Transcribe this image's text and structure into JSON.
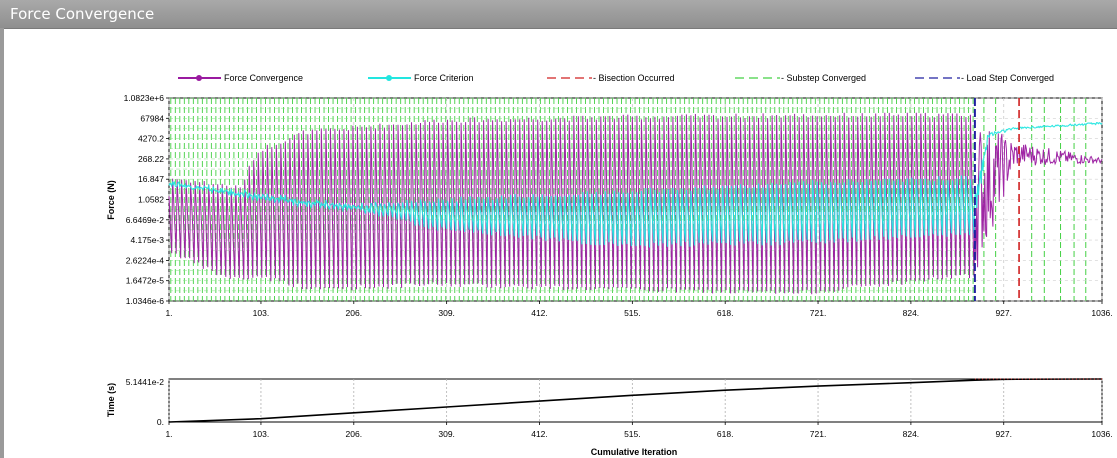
{
  "window": {
    "title": "Force Convergence"
  },
  "colors": {
    "force_convergence": "#9a1aa0",
    "force_criterion": "#22e6e0",
    "bisection": "#d02020",
    "substep": "#44d044",
    "load_step": "#2020a0",
    "time_curve": "#000000"
  },
  "chart_data": [
    {
      "type": "line",
      "ylabel": "Force (N)",
      "xlabel": "",
      "y_scale": "log",
      "ylim": [
        1.0346e-06,
        1082300.0
      ],
      "xlim": [
        1,
        1036
      ],
      "x_ticks": [
        "1.",
        "103.",
        "206.",
        "309.",
        "412.",
        "515.",
        "618.",
        "721.",
        "824.",
        "927.",
        "1036."
      ],
      "y_ticks": [
        "1.0823e+6",
        "67984",
        "4270.2",
        "268.22",
        "16.847",
        "1.0582",
        "6.6469e-2",
        "4.175e-3",
        "2.6224e-4",
        "1.6472e-5",
        "1.0346e-6"
      ],
      "legend_position": "top",
      "legend": [
        {
          "name": "Force Convergence",
          "style": "solid-marker"
        },
        {
          "name": "Force Criterion",
          "style": "solid-marker"
        },
        {
          "name": "Bisection Occurred",
          "style": "dashed"
        },
        {
          "name": "Substep Converged",
          "style": "dashed"
        },
        {
          "name": "Load Step Converged",
          "style": "dashed"
        }
      ],
      "bisection_x": [
        944
      ],
      "load_step_x": [
        895
      ],
      "substep_interval_approx": 5,
      "series": [
        {
          "name": "Force Convergence",
          "note_shape": "oscillation",
          "upper_envelope": [
            [
              1,
              20
            ],
            [
              60,
              8
            ],
            [
              80,
              5
            ],
            [
              95,
              300
            ],
            [
              103,
              1000
            ],
            [
              150,
              10000
            ],
            [
              300,
              50000
            ],
            [
              500,
              80000
            ],
            [
              700,
              100000
            ],
            [
              880,
              110000
            ],
            [
              895,
              100000
            ],
            [
              940,
              3000
            ],
            [
              1036,
              300
            ]
          ],
          "lower_envelope": [
            [
              1,
              0.001
            ],
            [
              60,
              3e-05
            ],
            [
              80,
              2e-05
            ],
            [
              103,
              3e-05
            ],
            [
              160,
              5e-06
            ],
            [
              300,
              1e-05
            ],
            [
              500,
              5e-06
            ],
            [
              700,
              3e-06
            ],
            [
              880,
              3e-05
            ],
            [
              895,
              3e-05
            ],
            [
              940,
              100
            ],
            [
              1036,
              150
            ]
          ]
        },
        {
          "name": "Force Criterion",
          "note_shape": "oscillation",
          "upper_envelope": [
            [
              1,
              10
            ],
            [
              103,
              2
            ],
            [
              200,
              0.5
            ],
            [
              300,
              1
            ],
            [
              500,
              3
            ],
            [
              700,
              10
            ],
            [
              880,
              20
            ],
            [
              895,
              20
            ],
            [
              910,
              10000
            ],
            [
              940,
              20000
            ],
            [
              1036,
              40000
            ]
          ],
          "lower_envelope": [
            [
              1,
              10
            ],
            [
              103,
              1
            ],
            [
              200,
              0.3
            ],
            [
              300,
              0.02
            ],
            [
              500,
              0.002
            ],
            [
              700,
              0.003
            ],
            [
              880,
              0.01
            ],
            [
              895,
              0.01
            ],
            [
              910,
              5000
            ],
            [
              940,
              15000
            ],
            [
              1036,
              30000
            ]
          ]
        }
      ]
    },
    {
      "type": "line",
      "ylabel": "Time (s)",
      "xlabel": "Cumulative Iteration",
      "ylim": [
        0,
        0.051441
      ],
      "xlim": [
        1,
        1036
      ],
      "x_ticks": [
        "1.",
        "103.",
        "206.",
        "309.",
        "412.",
        "515.",
        "618.",
        "721.",
        "824.",
        "927.",
        "1036."
      ],
      "y_ticks": [
        "5.1441e-2",
        "0."
      ],
      "series": [
        {
          "name": "Time",
          "points": [
            [
              1,
              0
            ],
            [
              103,
              0.004
            ],
            [
              206,
              0.011
            ],
            [
              309,
              0.018
            ],
            [
              412,
              0.025
            ],
            [
              515,
              0.032
            ],
            [
              618,
              0.038
            ],
            [
              721,
              0.043
            ],
            [
              824,
              0.047
            ],
            [
              895,
              0.05
            ],
            [
              927,
              0.0511
            ],
            [
              1036,
              0.0514
            ]
          ]
        }
      ]
    }
  ]
}
